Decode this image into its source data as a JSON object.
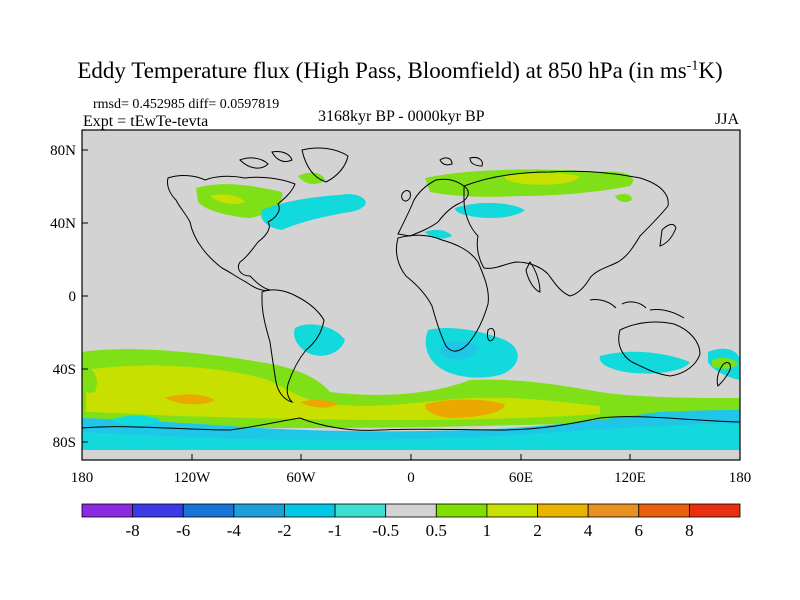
{
  "figure": {
    "title_main": "Eddy Temperature flux (High Pass, Bloomfield) at 850 hPa (in ms",
    "title_sup": "-1",
    "title_end": "K)",
    "stats": "rmsd= 0.452985 diff= 0.0597819",
    "expt": "Expt = tEwTe-tevta",
    "period": "3168kyr BP - 0000kyr BP",
    "season": "JJA"
  },
  "map": {
    "projection": "cylindrical equidistant",
    "lon_range": [
      -180,
      180
    ],
    "lat_range": [
      -90,
      90
    ],
    "background_color": "#d3d3d3",
    "lat_tick_labels": [
      "80N",
      "40N",
      "0",
      "40S",
      "80S"
    ],
    "lon_tick_labels": [
      "180",
      "120W",
      "60W",
      "0",
      "60E",
      "120E",
      "180"
    ]
  },
  "colorbar": {
    "boundaries": [
      "-8",
      "-6",
      "-4",
      "-2",
      "-1",
      "-0.5",
      "0.5",
      "1",
      "2",
      "4",
      "6",
      "8"
    ],
    "colors": [
      "#8a2be2",
      "#3a3ae6",
      "#1874d6",
      "#1e9fd8",
      "#00c8e6",
      "#3ce0d0",
      "#d3d3d3",
      "#7fe000",
      "#c8e000",
      "#e8b400",
      "#e89020",
      "#e86010",
      "#e83010"
    ]
  },
  "legend_colors": {
    "cyan": "#12dadc",
    "light_blue": "#20c6e8",
    "green": "#80e018",
    "yellow_green": "#c8e000",
    "orange": "#eaa800"
  }
}
